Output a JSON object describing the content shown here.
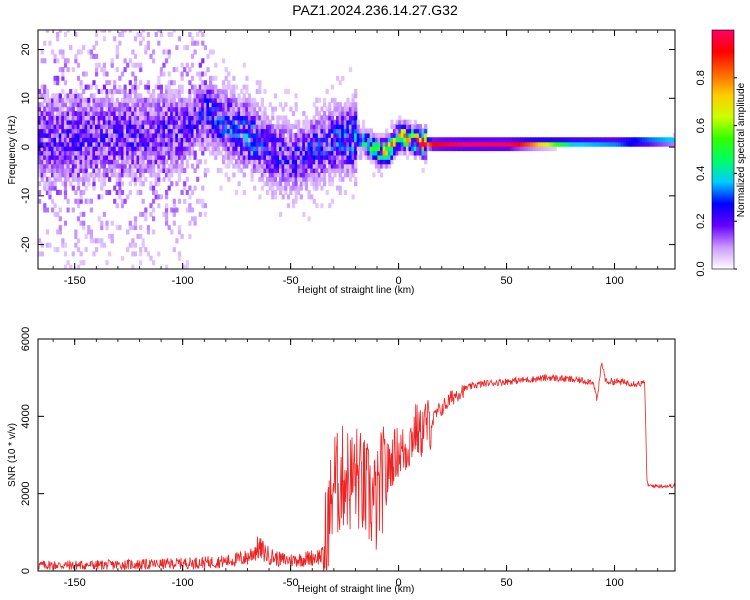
{
  "title": "PAZ1.2024.236.14.27.G32",
  "chart_data": [
    {
      "type": "heatmap",
      "xlabel": "Height of straight line (km)",
      "ylabel": "Frequency (Hz)",
      "xlim": [
        -167,
        128
      ],
      "ylim": [
        -25,
        24
      ],
      "xticks": [
        -150,
        -100,
        -50,
        0,
        50,
        100
      ],
      "yticks": [
        -20,
        -10,
        0,
        10,
        20
      ],
      "colorbar": {
        "label": "Normalized spectral amplitude",
        "range": [
          0,
          1
        ],
        "ticks": [
          "0.0",
          "0.2",
          "0.4",
          "0.6",
          "0.8"
        ],
        "colors": [
          "#ffffff",
          "#cc99ff",
          "#6600ff",
          "#0000ff",
          "#00ccff",
          "#00ff66",
          "#33ff00",
          "#ccff00",
          "#ffcc00",
          "#ff6600",
          "#ff0000",
          "#ff0066"
        ]
      },
      "ridge": [
        {
          "x": -167,
          "y": 1.5,
          "a": 0.18
        },
        {
          "x": -140,
          "y": 1.5,
          "a": 0.18
        },
        {
          "x": -120,
          "y": 2.0,
          "a": 0.18
        },
        {
          "x": -100,
          "y": 3.0,
          "a": 0.18
        },
        {
          "x": -90,
          "y": 7.0,
          "a": 0.22
        },
        {
          "x": -80,
          "y": 4.0,
          "a": 0.25
        },
        {
          "x": -70,
          "y": 2.0,
          "a": 0.28
        },
        {
          "x": -60,
          "y": -1.0,
          "a": 0.22
        },
        {
          "x": -50,
          "y": -3.0,
          "a": 0.2
        },
        {
          "x": -40,
          "y": -1.0,
          "a": 0.22
        },
        {
          "x": -30,
          "y": 1.0,
          "a": 0.25
        },
        {
          "x": -20,
          "y": 1.5,
          "a": 0.3
        },
        {
          "x": -15,
          "y": 0.5,
          "a": 0.4
        },
        {
          "x": -10,
          "y": -1.5,
          "a": 0.55
        },
        {
          "x": -5,
          "y": -1.0,
          "a": 0.6
        },
        {
          "x": 0,
          "y": 2.0,
          "a": 0.55
        },
        {
          "x": 5,
          "y": 1.5,
          "a": 0.6
        },
        {
          "x": 10,
          "y": 0.5,
          "a": 0.75
        },
        {
          "x": 15,
          "y": 0.2,
          "a": 0.9
        },
        {
          "x": 30,
          "y": 0.2,
          "a": 1.0
        },
        {
          "x": 50,
          "y": 0.2,
          "a": 0.98
        },
        {
          "x": 60,
          "y": 0.3,
          "a": 0.85
        },
        {
          "x": 70,
          "y": 0.4,
          "a": 0.65
        },
        {
          "x": 80,
          "y": 0.5,
          "a": 0.45
        },
        {
          "x": 100,
          "y": 0.5,
          "a": 0.4
        },
        {
          "x": 115,
          "y": 0.8,
          "a": 0.38
        },
        {
          "x": 128,
          "y": 1.0,
          "a": 0.38
        }
      ]
    },
    {
      "type": "line",
      "xlabel": "Height of straight line (km)",
      "ylabel": "SNR (10 * v/v)",
      "xlim": [
        -167,
        128
      ],
      "ylim": [
        0,
        6000
      ],
      "xticks": [
        -150,
        -100,
        -50,
        0,
        50,
        100
      ],
      "yticks": [
        0,
        2000,
        4000,
        6000
      ],
      "color": "#ee2222",
      "series": [
        {
          "x": [
            -167,
            -150,
            -130,
            -110,
            -100,
            -90,
            -80,
            -70,
            -65,
            -60,
            -55,
            -50,
            -45,
            -40,
            -35,
            -32,
            -30,
            -28,
            -25,
            -22,
            -20,
            -18,
            -15,
            -12,
            -10,
            -8,
            -5,
            -2,
            0,
            3,
            5,
            8,
            10,
            12,
            15,
            18,
            20,
            25,
            30,
            35,
            40,
            50,
            60,
            70,
            80,
            90,
            92,
            94,
            96,
            100,
            110,
            114,
            115,
            116,
            120,
            128
          ],
          "y": [
            150,
            150,
            160,
            180,
            200,
            220,
            250,
            350,
            600,
            400,
            300,
            280,
            300,
            350,
            400,
            1400,
            2400,
            2200,
            2500,
            2300,
            2500,
            2300,
            2000,
            1800,
            1700,
            2300,
            2600,
            3000,
            3100,
            3100,
            3300,
            3700,
            3500,
            3800,
            3800,
            4100,
            4200,
            4500,
            4700,
            4800,
            4850,
            4900,
            4950,
            5000,
            4950,
            4900,
            4400,
            5400,
            4900,
            4900,
            4850,
            4850,
            2300,
            2200,
            2200,
            2200
          ]
        }
      ]
    }
  ]
}
